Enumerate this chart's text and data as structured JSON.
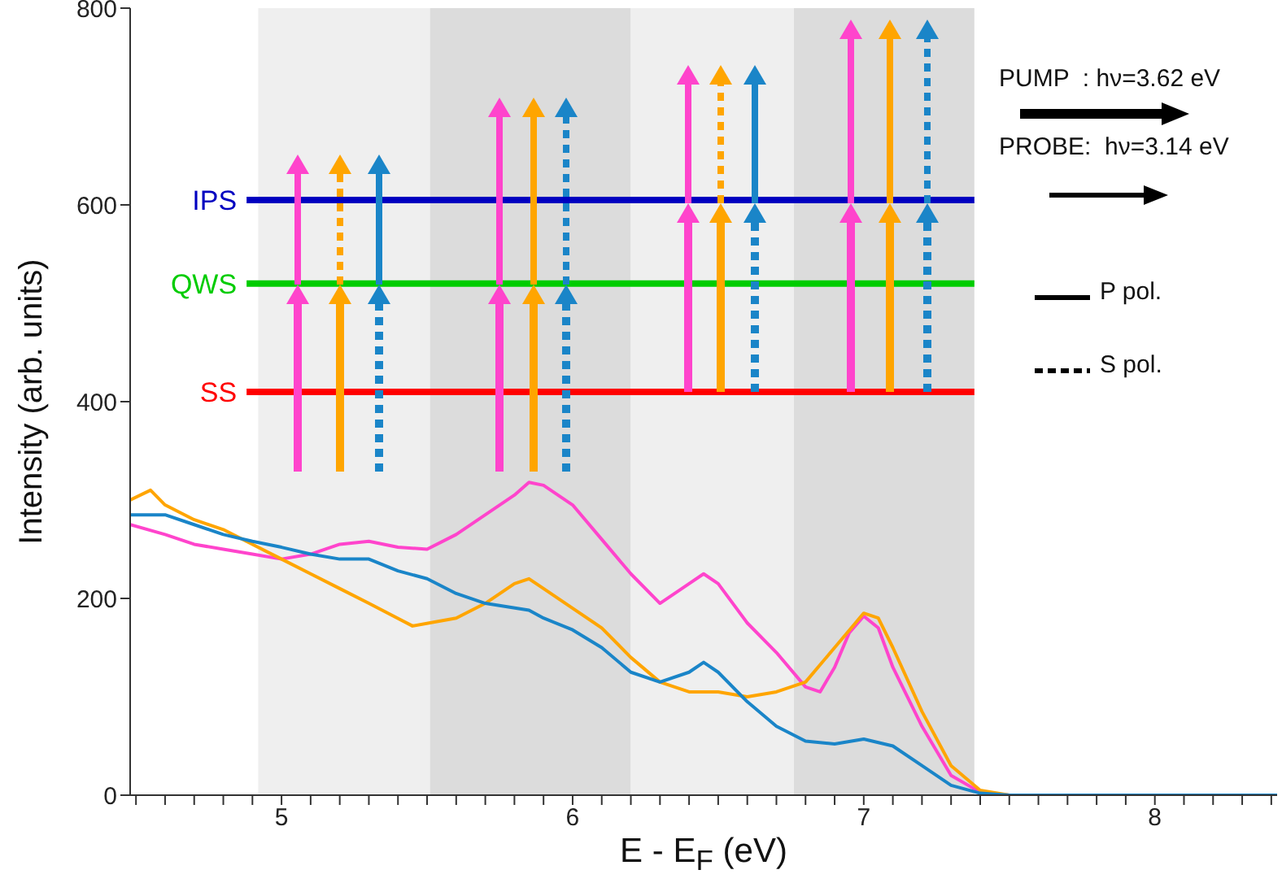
{
  "chart_data": {
    "type": "line",
    "xlabel": "E - E$_{F}$ (eV)",
    "ylabel": "Intensity (arb. units)",
    "xlim": [
      4.48,
      8.42
    ],
    "ylim": [
      0,
      800
    ],
    "xticks": [
      {
        "value": 4.5,
        "label": null
      },
      {
        "value": 4.6,
        "label": null
      },
      {
        "value": 4.7,
        "label": null
      },
      {
        "value": 4.8,
        "label": null
      },
      {
        "value": 4.9,
        "label": null
      },
      5,
      {
        "value": 5.1,
        "label": null
      },
      {
        "value": 5.2,
        "label": null
      },
      {
        "value": 5.3,
        "label": null
      },
      {
        "value": 5.4,
        "label": null
      },
      {
        "value": 5.5,
        "label": null
      },
      {
        "value": 5.6,
        "label": null
      },
      {
        "value": 5.7,
        "label": null
      },
      {
        "value": 5.8,
        "label": null
      },
      {
        "value": 5.9,
        "label": null
      },
      6,
      {
        "value": 6.1,
        "label": null
      },
      {
        "value": 6.2,
        "label": null
      },
      {
        "value": 6.3,
        "label": null
      },
      {
        "value": 6.4,
        "label": null
      },
      {
        "value": 6.5,
        "label": null
      },
      {
        "value": 6.6,
        "label": null
      },
      {
        "value": 6.7,
        "label": null
      },
      {
        "value": 6.8,
        "label": null
      },
      {
        "value": 6.9,
        "label": null
      },
      7,
      {
        "value": 7.1,
        "label": null
      },
      {
        "value": 7.2,
        "label": null
      },
      {
        "value": 7.3,
        "label": null
      },
      {
        "value": 7.4,
        "label": null
      },
      {
        "value": 7.5,
        "label": null
      },
      {
        "value": 7.6,
        "label": null
      },
      {
        "value": 7.7,
        "label": null
      },
      {
        "value": 7.8,
        "label": null
      },
      {
        "value": 7.9,
        "label": null
      },
      8,
      {
        "value": 8.1,
        "label": null
      },
      {
        "value": 8.2,
        "label": null
      },
      {
        "value": 8.3,
        "label": null
      },
      {
        "value": 8.4,
        "label": null
      }
    ],
    "yticks": [
      0,
      200,
      400,
      600,
      800
    ],
    "series": [
      {
        "color": "#ff44cc",
        "x": [
          4.48,
          4.6,
          4.7,
          4.8,
          4.9,
          5.0,
          5.1,
          5.2,
          5.3,
          5.4,
          5.5,
          5.6,
          5.7,
          5.8,
          5.85,
          5.9,
          6.0,
          6.1,
          6.2,
          6.3,
          6.4,
          6.45,
          6.5,
          6.6,
          6.7,
          6.8,
          6.85,
          6.9,
          6.95,
          7.0,
          7.05,
          7.1,
          7.2,
          7.3,
          7.4,
          7.5,
          8.42
        ],
        "values": [
          275,
          265,
          255,
          250,
          245,
          240,
          245,
          255,
          258,
          252,
          250,
          265,
          285,
          305,
          318,
          315,
          295,
          260,
          225,
          195,
          215,
          225,
          215,
          175,
          145,
          110,
          105,
          130,
          165,
          182,
          170,
          130,
          70,
          20,
          3,
          0,
          0
        ]
      },
      {
        "color": "#ffa500",
        "x": [
          4.48,
          4.55,
          4.6,
          4.7,
          4.8,
          4.9,
          5.0,
          5.1,
          5.2,
          5.3,
          5.45,
          5.6,
          5.7,
          5.8,
          5.85,
          5.9,
          6.0,
          6.1,
          6.2,
          6.3,
          6.4,
          6.5,
          6.6,
          6.7,
          6.8,
          6.9,
          7.0,
          7.05,
          7.1,
          7.2,
          7.3,
          7.4,
          7.5,
          8.42
        ],
        "values": [
          300,
          310,
          295,
          280,
          270,
          255,
          240,
          225,
          210,
          195,
          172,
          180,
          195,
          215,
          220,
          210,
          190,
          170,
          140,
          115,
          105,
          105,
          100,
          105,
          115,
          150,
          185,
          180,
          150,
          85,
          30,
          5,
          0,
          0
        ]
      },
      {
        "color": "#1a85c8",
        "x": [
          4.48,
          4.6,
          4.7,
          4.8,
          4.9,
          5.0,
          5.1,
          5.2,
          5.3,
          5.4,
          5.5,
          5.6,
          5.7,
          5.85,
          5.9,
          6.0,
          6.1,
          6.2,
          6.3,
          6.4,
          6.45,
          6.5,
          6.6,
          6.7,
          6.8,
          6.9,
          7.0,
          7.1,
          7.2,
          7.3,
          7.4,
          7.5,
          8.42
        ],
        "values": [
          285,
          285,
          275,
          265,
          258,
          252,
          245,
          240,
          240,
          228,
          220,
          205,
          195,
          188,
          180,
          168,
          150,
          125,
          115,
          125,
          135,
          125,
          95,
          70,
          55,
          52,
          57,
          50,
          30,
          10,
          2,
          0,
          0
        ]
      }
    ],
    "bands": [
      {
        "axis": "x",
        "from": 4.92,
        "to": 5.51,
        "color": "#efefef"
      },
      {
        "axis": "x",
        "from": 5.51,
        "to": 6.2,
        "color": "#dcdcdc"
      },
      {
        "axis": "x",
        "from": 6.2,
        "to": 6.76,
        "color": "#efefef"
      },
      {
        "axis": "x",
        "from": 6.76,
        "to": 7.38,
        "color": "#dcdcdc"
      }
    ],
    "ref_lines": [
      {
        "axis": "y",
        "value": 605,
        "label": "IPS",
        "color": "#0000c0"
      },
      {
        "axis": "y",
        "value": 520,
        "label": "QWS",
        "color": "#00cc00"
      },
      {
        "axis": "y",
        "value": 410,
        "label": "SS",
        "color": "#ff0000"
      }
    ],
    "annotations": [
      "PUMP  : hν=3.62 eV",
      "PROBE:  hν=3.14 eV",
      "P pol.",
      "S pol."
    ]
  }
}
